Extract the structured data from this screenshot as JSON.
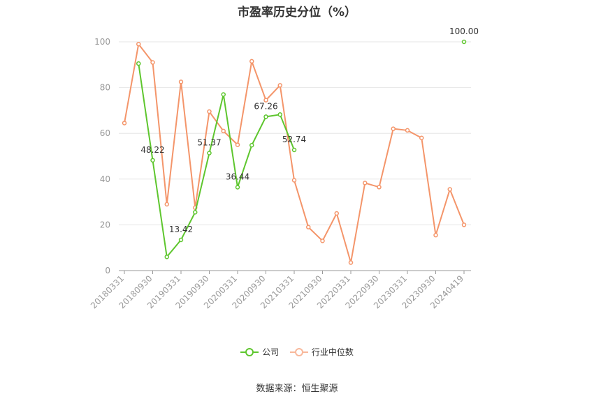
{
  "chart_data": {
    "type": "line",
    "title": "市盈率历史分位（%）",
    "ylim": [
      0,
      100
    ],
    "yticks": [
      0,
      20,
      40,
      60,
      80,
      100
    ],
    "x": [
      "20180331",
      "20180630",
      "20180930",
      "20181231",
      "20190331",
      "20190630",
      "20190930",
      "20191231",
      "20200331",
      "20200630",
      "20200930",
      "20201231",
      "20210331",
      "20210630",
      "20210930",
      "20211231",
      "20220331",
      "20220630",
      "20220930",
      "20221231",
      "20230331",
      "20230630",
      "20230930",
      "20231231",
      "20240419"
    ],
    "xtick_labels": [
      "20180331",
      "20180930",
      "20190331",
      "20190930",
      "20200331",
      "20200930",
      "20210331",
      "20210930",
      "20220331",
      "20220930",
      "20230331",
      "20230930",
      "20240419"
    ],
    "grid": true,
    "legend_position": "bottom",
    "series": [
      {
        "name": "公司",
        "color": "#5ec62e",
        "values": [
          null,
          90.5,
          48.22,
          6.0,
          13.42,
          25.5,
          51.37,
          77.0,
          36.44,
          54.8,
          67.26,
          68.2,
          52.74,
          null,
          null,
          null,
          null,
          null,
          null,
          null,
          null,
          null,
          null,
          null,
          100.0
        ],
        "data_labels": {
          "2": "48.22",
          "4": "13.42",
          "6": "51.37",
          "8": "36.44",
          "10": "67.26",
          "12": "52.74",
          "24": "100.00"
        }
      },
      {
        "name": "行业中位数",
        "color": "#f4956a",
        "values": [
          64.5,
          99.0,
          91.0,
          29.0,
          82.5,
          27.5,
          69.5,
          61.0,
          55.0,
          91.5,
          74.5,
          81.0,
          39.5,
          19.0,
          13.0,
          25.0,
          3.5,
          38.3,
          36.5,
          62.0,
          61.3,
          58.0,
          15.5,
          35.5,
          20.0
        ]
      }
    ]
  },
  "legend": {
    "company": "公司",
    "industry": "行业中位数"
  },
  "source_text": "数据来源：恒生聚源"
}
